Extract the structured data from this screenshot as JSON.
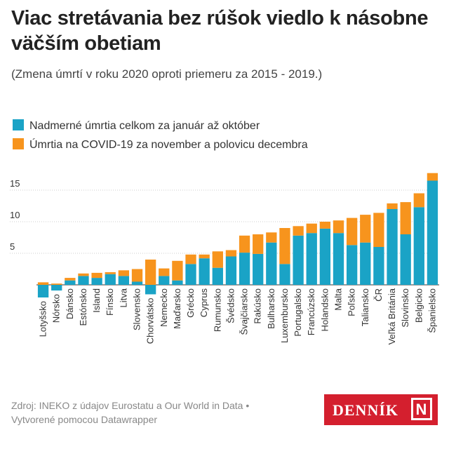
{
  "chart_data": {
    "type": "stacked-bar",
    "title": "Viac stretávania bez rúšok viedlo k násobne väčším obetiam",
    "subtitle": "(Zmena úmrtí v roku 2020 oproti priemeru za 2015 - 2019.)",
    "categories": [
      "Lotyšsko",
      "Nórsko",
      "Dánsko",
      "Estónsko",
      "Island",
      "Fínsko",
      "Litva",
      "Slovensko",
      "Chorvátsko",
      "Nemecko",
      "Maďarsko",
      "Grécko",
      "Cyprus",
      "Rumunsko",
      "Švédsko",
      "Švajčiarsko",
      "Rakúsko",
      "Bulharsko",
      "Luxembursko",
      "Portugalsko",
      "Francúzsko",
      "Holandsko",
      "Malta",
      "Poľsko",
      "Taliansko",
      "ČR",
      "Veľká Británia",
      "Slovinsko",
      "Belgicko",
      "Španielsko"
    ],
    "series": [
      {
        "name": "Nadmerné úmrtia celkom za január až október",
        "color": "#1aa3c6",
        "values": [
          -2.0,
          -0.9,
          0.7,
          1.4,
          1.1,
          1.7,
          1.4,
          0.5,
          -1.5,
          1.4,
          0.7,
          3.3,
          4.2,
          2.7,
          4.5,
          5.1,
          4.9,
          6.7,
          3.3,
          7.8,
          8.2,
          8.9,
          8.2,
          6.3,
          6.7,
          6.0,
          12.0,
          8.0,
          12.3,
          16.5
        ]
      },
      {
        "name": "Úmrtia na COVID-19 za november a polovicu decembra",
        "color": "#f7941d",
        "values": [
          0.4,
          0.2,
          0.4,
          0.4,
          0.8,
          0.3,
          0.9,
          2.0,
          4.0,
          1.2,
          3.1,
          1.5,
          0.6,
          2.6,
          1.0,
          2.7,
          3.1,
          1.6,
          5.7,
          1.5,
          1.5,
          1.1,
          2.0,
          4.3,
          4.4,
          5.4,
          0.9,
          5.1,
          2.2,
          1.2
        ]
      }
    ],
    "ylim": [
      -3,
      18
    ],
    "yticks": [
      5,
      10,
      15
    ],
    "grid": true,
    "footer": [
      "Zdroj: INEKO z údajov Eurostatu a Our World in Data •",
      "Vytvorené pomocou Datawrapper"
    ],
    "logo": "DENNÍK"
  }
}
